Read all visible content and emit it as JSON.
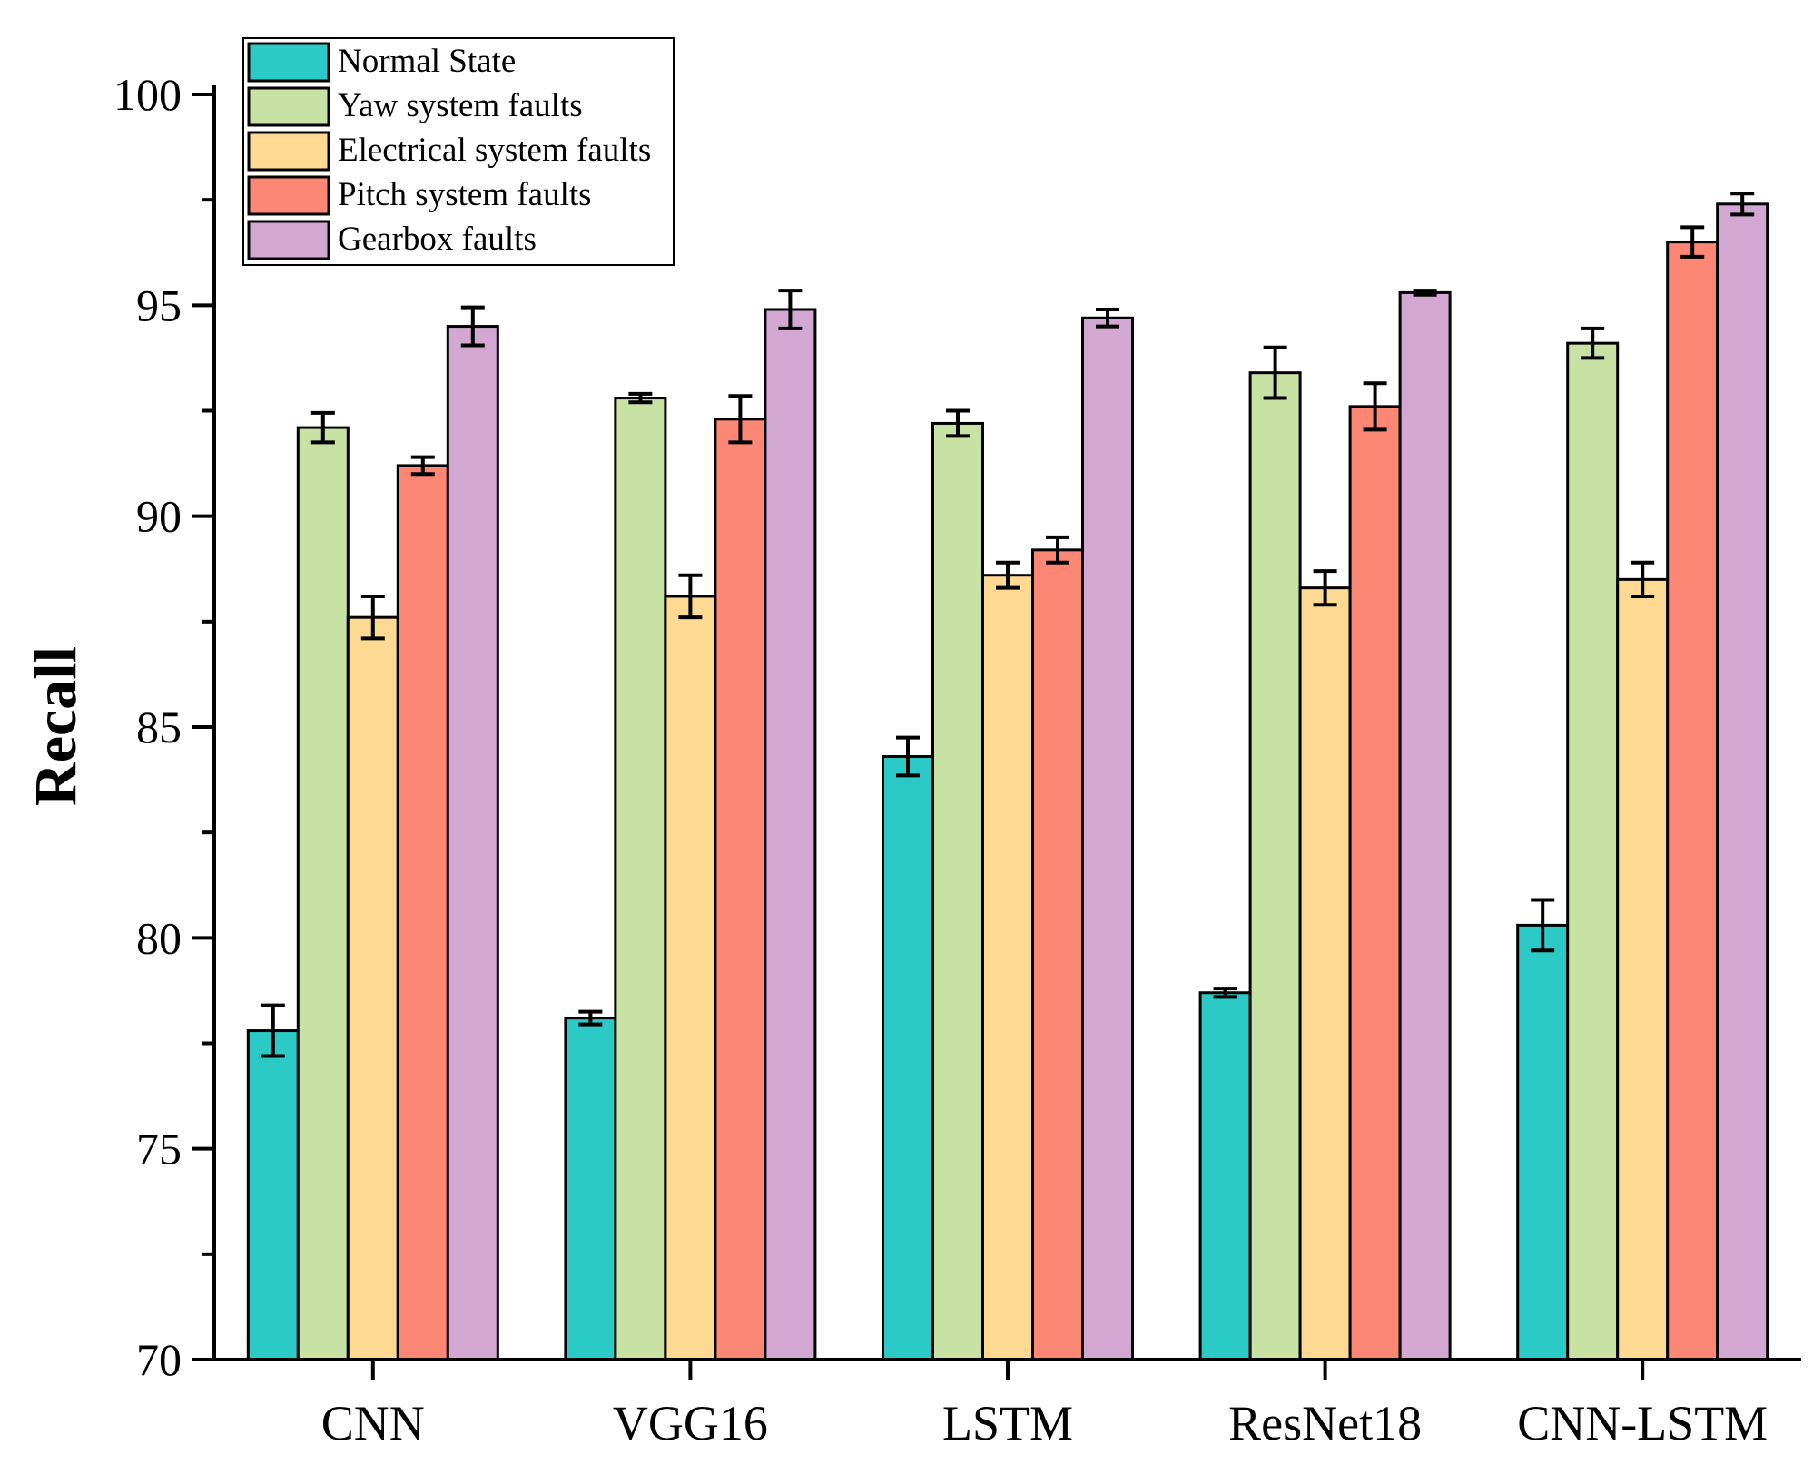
{
  "chart_data": {
    "type": "bar",
    "title": "",
    "xlabel": "",
    "ylabel": "Recall",
    "ylim": [
      70,
      100
    ],
    "yticks": [
      70,
      75,
      80,
      85,
      90,
      95,
      100
    ],
    "legend_position": "top-left",
    "categories": [
      "CNN",
      "VGG16",
      "LSTM",
      "ResNet18",
      "CNN-LSTM"
    ],
    "series": [
      {
        "name": "Normal State",
        "color": "#2ccac6",
        "values": [
          77.8,
          78.1,
          84.3,
          78.7,
          80.3
        ],
        "errors": [
          0.6,
          0.15,
          0.45,
          0.1,
          0.6
        ]
      },
      {
        "name": "Yaw system faults",
        "color": "#c8e2a4",
        "values": [
          92.1,
          92.8,
          92.2,
          93.4,
          94.1
        ],
        "errors": [
          0.35,
          0.1,
          0.3,
          0.6,
          0.35
        ]
      },
      {
        "name": "Electrical system faults",
        "color": "#fed991",
        "values": [
          87.6,
          88.1,
          88.6,
          88.3,
          88.5
        ],
        "errors": [
          0.5,
          0.5,
          0.3,
          0.4,
          0.4
        ]
      },
      {
        "name": "Pitch system faults",
        "color": "#fd8775",
        "values": [
          91.2,
          92.3,
          89.2,
          92.6,
          96.5
        ],
        "errors": [
          0.2,
          0.55,
          0.3,
          0.55,
          0.35
        ]
      },
      {
        "name": "Gearbox faults",
        "color": "#d2a8d3",
        "values": [
          94.5,
          94.9,
          94.7,
          95.3,
          97.4
        ],
        "errors": [
          0.45,
          0.45,
          0.2,
          0.05,
          0.25
        ]
      }
    ]
  }
}
